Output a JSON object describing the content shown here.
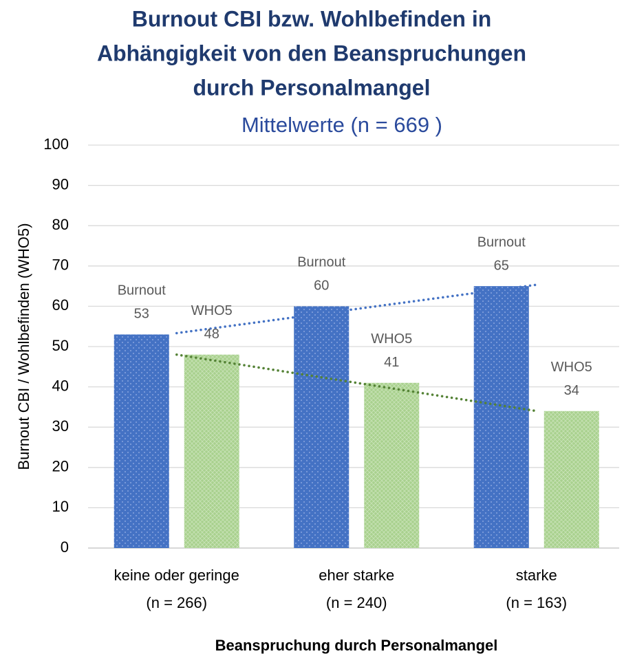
{
  "chart_data": {
    "type": "bar",
    "title": [
      "Burnout CBI bzw. Wohlbefinden in",
      "Abhängigkeit von den Beanspruchungen",
      "durch Personalmangel"
    ],
    "subtitle": "Mittelwerte (n = 669 )",
    "y_axis_label": "Burnout CBI  / Wohlbefinden (WHO5)",
    "x_axis_label": "Beanspruchung durch Personalmangel",
    "categories": [
      [
        "keine oder geringe",
        "(n = 266)"
      ],
      [
        "eher starke",
        "(n = 240)"
      ],
      [
        "starke",
        "(n = 163)"
      ]
    ],
    "series": [
      {
        "name": "Burnout",
        "color": "#4472c4",
        "values": [
          53,
          60,
          65
        ]
      },
      {
        "name": "WHO5",
        "color": "#a9d18e",
        "values": [
          48,
          41,
          34
        ]
      }
    ],
    "trendline_colors": [
      "#4472c4",
      "#548235"
    ],
    "ylim": [
      0,
      100
    ],
    "yticks": [
      0,
      10,
      20,
      30,
      40,
      50,
      60,
      70,
      80,
      90,
      100
    ],
    "grid": true
  }
}
